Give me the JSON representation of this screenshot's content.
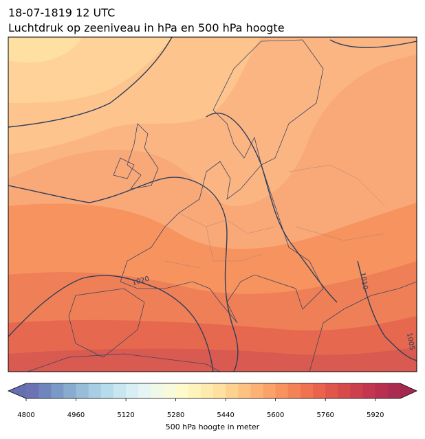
{
  "map": {
    "title": "18-07-1819 12 UTC",
    "subtitle": "Luchtdruk op zeeniveau in hPa en 500 hPa hoogte",
    "isobar_labels": [
      "1020",
      "1010",
      "1005"
    ],
    "colorbar": {
      "label": "500 hPa hoogte in meter",
      "clim": [
        4800,
        6000
      ],
      "ticks": [
        4800,
        4960,
        5120,
        5280,
        5440,
        5600,
        5760,
        5920
      ],
      "colors": [
        "#6b73b5",
        "#7085bd",
        "#7a99c6",
        "#87acd0",
        "#97bdd9",
        "#a7cee2",
        "#b6dbea",
        "#c7e6f0",
        "#d8eef4",
        "#e6f4f3",
        "#f0f8e8",
        "#f8fadb",
        "#fffacc",
        "#fff3bd",
        "#feeaad",
        "#fee09f",
        "#fdd290",
        "#fdc282",
        "#fcb275",
        "#fba269",
        "#f8925f",
        "#f48257",
        "#ef7251",
        "#e9634d",
        "#e0564a",
        "#d64b4a",
        "#cc404b",
        "#c2374d",
        "#b8304f",
        "#aa2c50"
      ],
      "under_color": "#6470b0",
      "over_color": "#a5294e"
    }
  }
}
